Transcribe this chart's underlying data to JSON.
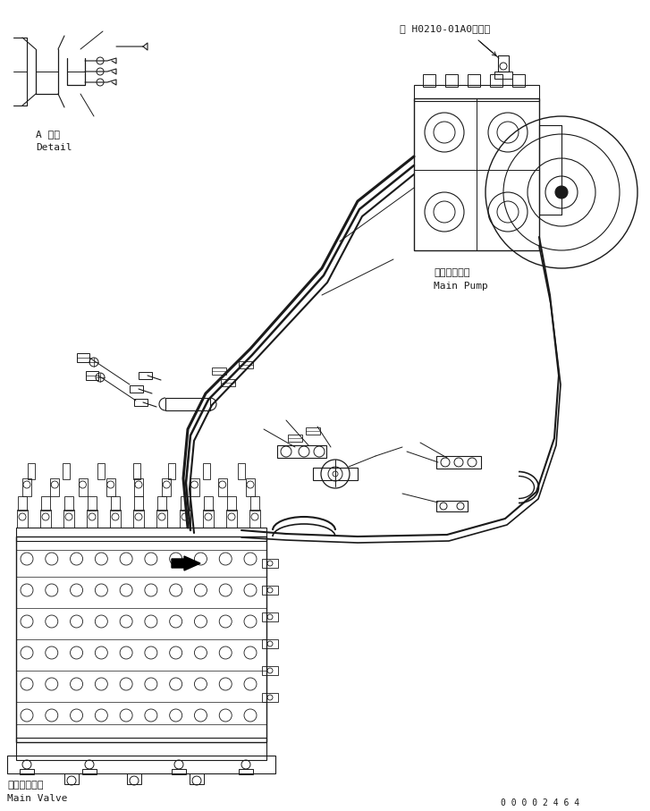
{
  "bg_color": "#ffffff",
  "line_color": "#1a1a1a",
  "title_ref": "第 H0210-01A0図参照",
  "label_main_pump_jp": "メインポンプ",
  "label_main_pump_en": "Main Pump",
  "label_main_valve_jp": "メインバルブ",
  "label_main_valve_en": "Main Valve",
  "label_detail_jp": "A 詳細",
  "label_detail_en": "Detail",
  "serial": "0 0 0 0 2 4 6 4",
  "figsize": [
    7.27,
    9.07
  ],
  "dpi": 100
}
